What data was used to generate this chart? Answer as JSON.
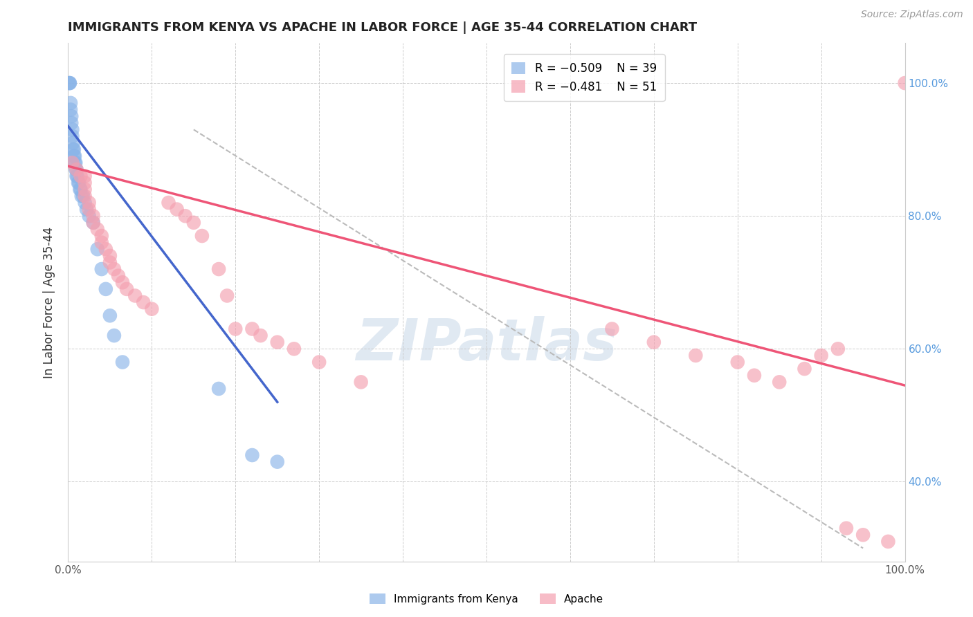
{
  "title": "IMMIGRANTS FROM KENYA VS APACHE IN LABOR FORCE | AGE 35-44 CORRELATION CHART",
  "source": "Source: ZipAtlas.com",
  "ylabel": "In Labor Force | Age 35-44",
  "xlim": [
    0.0,
    1.0
  ],
  "ylim": [
    0.28,
    1.06
  ],
  "x_tick_positions": [
    0.0,
    0.1,
    0.2,
    0.3,
    0.4,
    0.5,
    0.6,
    0.7,
    0.8,
    0.9,
    1.0
  ],
  "x_tick_labels": [
    "0.0%",
    "",
    "",
    "",
    "",
    "",
    "",
    "",
    "",
    "",
    "100.0%"
  ],
  "y_tick_positions": [
    0.4,
    0.6,
    0.8,
    1.0
  ],
  "y_tick_labels_right": [
    "40.0%",
    "60.0%",
    "80.0%",
    "100.0%"
  ],
  "legend_r1": "R = −0.509",
  "legend_n1": "N = 39",
  "legend_r2": "R = −0.481",
  "legend_n2": "N = 51",
  "blue_color": "#8ab4e8",
  "pink_color": "#f4a0b0",
  "trendline_blue": "#4466CC",
  "trendline_pink": "#EE5577",
  "dashed_line_color": "#BBBBBB",
  "kenya_x": [
    0.001,
    0.002,
    0.002,
    0.003,
    0.003,
    0.004,
    0.004,
    0.005,
    0.005,
    0.006,
    0.006,
    0.007,
    0.007,
    0.008,
    0.008,
    0.009,
    0.009,
    0.01,
    0.01,
    0.011,
    0.012,
    0.013,
    0.014,
    0.015,
    0.016,
    0.018,
    0.02,
    0.022,
    0.025,
    0.03,
    0.035,
    0.04,
    0.045,
    0.05,
    0.055,
    0.065,
    0.18,
    0.22,
    0.25
  ],
  "kenya_y": [
    1.0,
    1.0,
    1.0,
    0.97,
    0.96,
    0.95,
    0.94,
    0.93,
    0.92,
    0.91,
    0.9,
    0.9,
    0.89,
    0.89,
    0.88,
    0.88,
    0.87,
    0.87,
    0.86,
    0.86,
    0.85,
    0.85,
    0.84,
    0.84,
    0.83,
    0.83,
    0.82,
    0.81,
    0.8,
    0.79,
    0.75,
    0.72,
    0.69,
    0.65,
    0.62,
    0.58,
    0.54,
    0.44,
    0.43
  ],
  "apache_x": [
    0.005,
    0.01,
    0.015,
    0.02,
    0.02,
    0.02,
    0.02,
    0.025,
    0.025,
    0.03,
    0.03,
    0.035,
    0.04,
    0.04,
    0.045,
    0.05,
    0.05,
    0.055,
    0.06,
    0.065,
    0.07,
    0.08,
    0.09,
    0.1,
    0.12,
    0.13,
    0.14,
    0.15,
    0.16,
    0.18,
    0.19,
    0.2,
    0.22,
    0.23,
    0.25,
    0.27,
    0.3,
    0.35,
    0.65,
    0.7,
    0.75,
    0.8,
    0.82,
    0.85,
    0.88,
    0.9,
    0.92,
    0.93,
    0.95,
    0.98,
    1.0
  ],
  "apache_y": [
    0.88,
    0.87,
    0.86,
    0.86,
    0.85,
    0.84,
    0.83,
    0.82,
    0.81,
    0.8,
    0.79,
    0.78,
    0.77,
    0.76,
    0.75,
    0.74,
    0.73,
    0.72,
    0.71,
    0.7,
    0.69,
    0.68,
    0.67,
    0.66,
    0.82,
    0.81,
    0.8,
    0.79,
    0.77,
    0.72,
    0.68,
    0.63,
    0.63,
    0.62,
    0.61,
    0.6,
    0.58,
    0.55,
    0.63,
    0.61,
    0.59,
    0.58,
    0.56,
    0.55,
    0.57,
    0.59,
    0.6,
    0.33,
    0.32,
    0.31,
    1.0
  ],
  "bg_color": "#FFFFFF",
  "grid_color": "#CCCCCC",
  "watermark_text": "ZIPatlas",
  "bottom_legend_labels": [
    "Immigrants from Kenya",
    "Apache"
  ]
}
